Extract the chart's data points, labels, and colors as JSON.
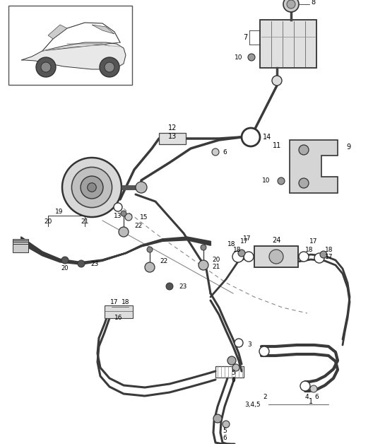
{
  "bg_color": "#ffffff",
  "fig_width": 5.45,
  "fig_height": 6.28,
  "dpi": 100
}
